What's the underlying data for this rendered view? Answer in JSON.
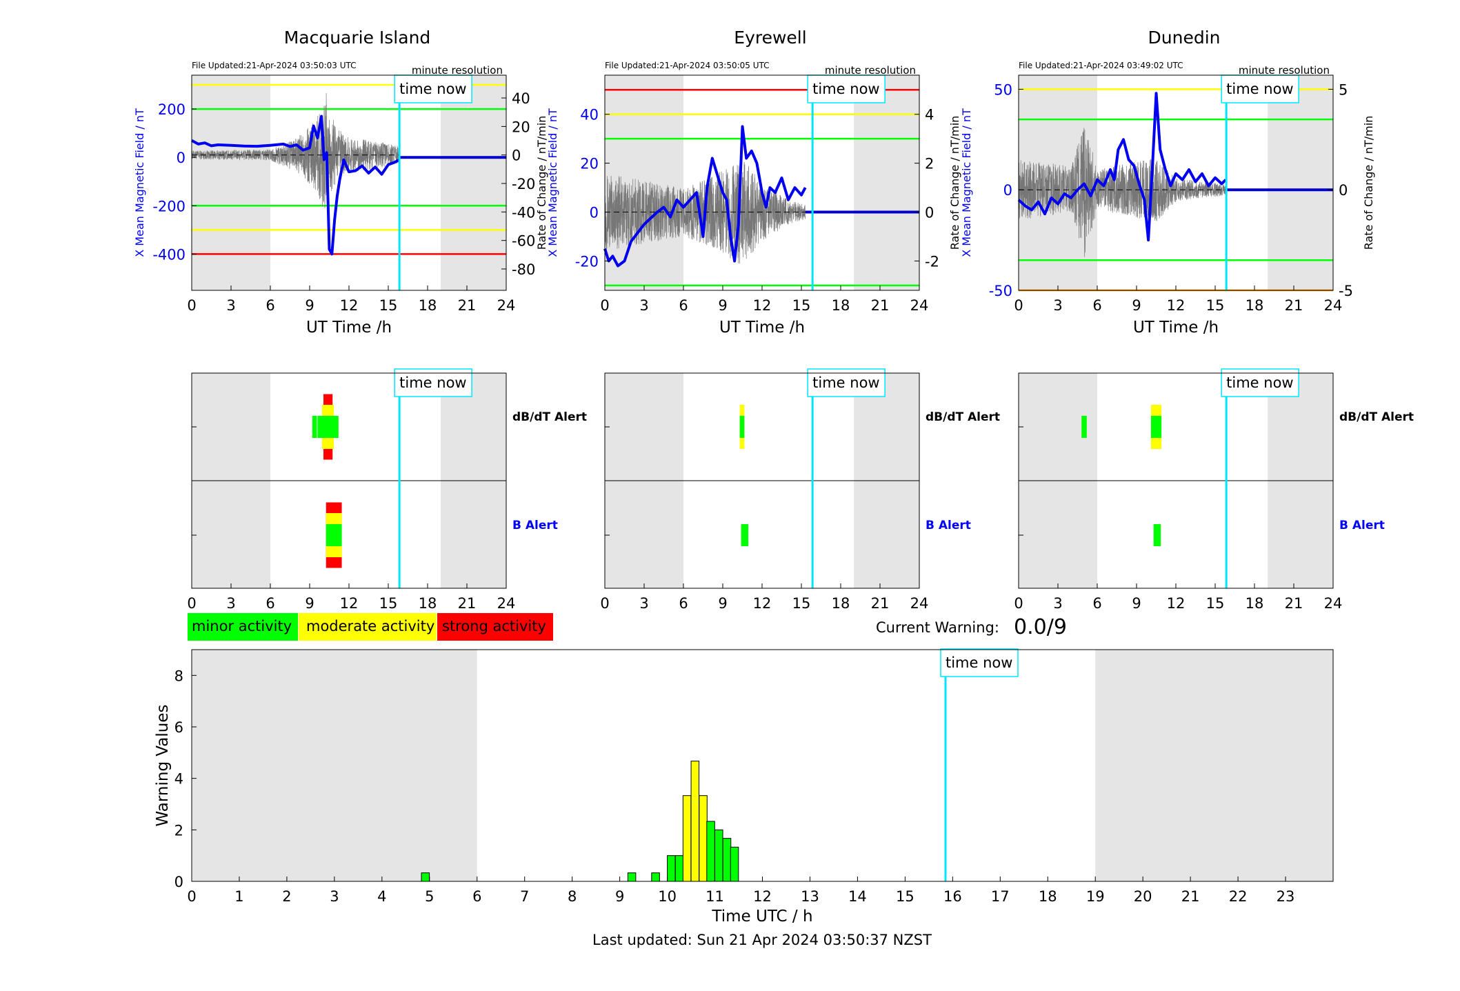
{
  "footer": {
    "last_updated": "Last updated: Sun 21 Apr 2024 03:50:37 NZST"
  },
  "common": {
    "xlabel": "UT Time /h",
    "y_left_label": "X Mean Magnetic Field / nT",
    "y_right_label": "Rate of Change / nT/min",
    "resolution": "minute resolution",
    "time_now_label": "time now",
    "time_now": 15.85,
    "daylight_shade": [
      [
        0,
        6
      ],
      [
        19,
        24
      ]
    ],
    "x_ticks": [
      0,
      3,
      6,
      9,
      12,
      15,
      18,
      21,
      24
    ],
    "dbdt_label": "dB/dT Alert",
    "b_label": "B Alert",
    "colors": {
      "minor": "#00ff00",
      "moderate": "#ffff00",
      "strong": "#ff0000",
      "field": "#0000ee",
      "now": "#00e5ff",
      "shade": "#e5e5e5"
    }
  },
  "legend": {
    "minor": "minor activity",
    "moderate": "moderate activity",
    "strong": "strong activity"
  },
  "current_warning": {
    "label": "Current Warning:",
    "value": "0.0/9"
  },
  "chart_data": [
    {
      "type": "line",
      "title": "Macquarie Island",
      "file_updated": "File Updated:21-Apr-2024 03:50:03 UTC",
      "xlim": [
        0,
        24
      ],
      "ylim_left": [
        -550,
        340
      ],
      "yticks_left": [
        -400,
        -200,
        0,
        200
      ],
      "ylim_right": [
        -95,
        56
      ],
      "yticks_right": [
        -80,
        -60,
        -40,
        -20,
        0,
        20,
        40
      ],
      "thresholds": [
        {
          "level": 300,
          "color": "#ffff00"
        },
        {
          "level": 200,
          "color": "#00ff00"
        },
        {
          "level": -200,
          "color": "#00ff00"
        },
        {
          "level": -300,
          "color": "#ffff00"
        },
        {
          "level": -400,
          "color": "#ff0000"
        }
      ],
      "field": {
        "x": [
          0,
          0.5,
          1,
          1.5,
          2,
          3,
          4,
          5,
          6,
          7,
          7.5,
          8,
          8.5,
          9,
          9.3,
          9.6,
          9.9,
          10.1,
          10.3,
          10.5,
          10.7,
          10.9,
          11.1,
          11.3,
          11.6,
          12,
          12.5,
          13,
          13.5,
          14,
          14.5,
          15,
          15.5,
          15.85
        ],
        "y": [
          70,
          55,
          60,
          48,
          52,
          50,
          47,
          46,
          50,
          55,
          45,
          52,
          30,
          40,
          130,
          80,
          170,
          -10,
          20,
          -380,
          -400,
          -260,
          -160,
          -90,
          -10,
          -60,
          -55,
          -35,
          -65,
          -40,
          -70,
          -30,
          -20,
          -10
        ]
      },
      "field_after_now": [
        [
          15.85,
          0
        ],
        [
          24,
          0
        ]
      ],
      "rate_amplitude": [
        [
          0,
          3
        ],
        [
          6,
          4
        ],
        [
          8,
          12
        ],
        [
          9.5,
          25
        ],
        [
          10.3,
          45
        ],
        [
          11,
          20
        ],
        [
          12,
          12
        ],
        [
          14,
          10
        ],
        [
          15.85,
          6
        ]
      ]
    },
    {
      "type": "line",
      "title": "Eyrewell",
      "file_updated": "File Updated:21-Apr-2024 03:50:05 UTC",
      "xlim": [
        0,
        24
      ],
      "ylim_left": [
        -32,
        56
      ],
      "yticks_left": [
        -20,
        0,
        20,
        40
      ],
      "ylim_right": [
        -3.2,
        5.6
      ],
      "yticks_right": [
        -2,
        0,
        2,
        4
      ],
      "thresholds": [
        {
          "level": 50,
          "color": "#ff0000"
        },
        {
          "level": 40,
          "color": "#ffff00"
        },
        {
          "level": 30,
          "color": "#00ff00"
        },
        {
          "level": -30,
          "color": "#00ff00"
        }
      ],
      "field": {
        "x": [
          0,
          0.3,
          0.6,
          1,
          1.5,
          2,
          3,
          4,
          4.5,
          5,
          5.5,
          6,
          6.5,
          7,
          7.5,
          7.8,
          8.2,
          8.6,
          9,
          9.3,
          9.6,
          9.9,
          10.2,
          10.5,
          10.8,
          11.2,
          11.6,
          12,
          12.3,
          12.6,
          13,
          13.5,
          14,
          14.5,
          15,
          15.3
        ],
        "y": [
          -15,
          -20,
          -18,
          -22,
          -20,
          -12,
          -5,
          0,
          2,
          -2,
          5,
          2,
          5,
          8,
          -10,
          10,
          22,
          15,
          8,
          5,
          -10,
          -20,
          -5,
          35,
          22,
          25,
          20,
          8,
          2,
          10,
          8,
          14,
          5,
          10,
          7,
          10
        ]
      },
      "field_after_now": [
        [
          15.3,
          0
        ],
        [
          24,
          0
        ]
      ],
      "rate_amplitude": [
        [
          0,
          1.6
        ],
        [
          4,
          1.2
        ],
        [
          6,
          1.0
        ],
        [
          8,
          1.4
        ],
        [
          10.5,
          2.2
        ],
        [
          12,
          1.2
        ],
        [
          14,
          0.5
        ],
        [
          15.3,
          0.3
        ]
      ]
    },
    {
      "type": "line",
      "title": "Dunedin",
      "file_updated": "File Updated:21-Apr-2024 03:49:02 UTC",
      "xlim": [
        0,
        24
      ],
      "ylim_left": [
        -50,
        57
      ],
      "yticks_left": [
        -50,
        0,
        50
      ],
      "ylim_right": [
        -5,
        5.7
      ],
      "yticks_right": [
        -5,
        0,
        5
      ],
      "thresholds": [
        {
          "level": 50,
          "color": "#ffff00"
        },
        {
          "level": 35,
          "color": "#00ff00"
        },
        {
          "level": -35,
          "color": "#00ff00"
        },
        {
          "level": -50,
          "color": "#ff9900"
        }
      ],
      "field": {
        "x": [
          0,
          0.5,
          1,
          1.5,
          2,
          2.5,
          3,
          3.5,
          4,
          4.5,
          5,
          5.5,
          6,
          6.5,
          7,
          7.3,
          7.6,
          8,
          8.4,
          8.8,
          9.2,
          9.6,
          9.9,
          10.2,
          10.5,
          10.8,
          11.2,
          11.6,
          12,
          12.5,
          13,
          13.5,
          14,
          14.5,
          15,
          15.5,
          15.8
        ],
        "y": [
          -5,
          -8,
          -10,
          -6,
          -12,
          -4,
          -7,
          -2,
          -4,
          0,
          3,
          -3,
          5,
          2,
          10,
          5,
          20,
          25,
          15,
          12,
          3,
          -5,
          -25,
          10,
          48,
          20,
          10,
          2,
          8,
          5,
          10,
          4,
          8,
          2,
          6,
          3,
          5
        ]
      },
      "field_after_now": [
        [
          15.8,
          0
        ],
        [
          24,
          0
        ]
      ],
      "rate_amplitude": [
        [
          0,
          1.5
        ],
        [
          4,
          1.2
        ],
        [
          5,
          3.5
        ],
        [
          6,
          1.0
        ],
        [
          8,
          1.3
        ],
        [
          10.5,
          1.6
        ],
        [
          12,
          0.6
        ],
        [
          14,
          0.4
        ],
        [
          15.8,
          0.3
        ]
      ]
    },
    {
      "type": "bar",
      "subtype": "alert_timeline",
      "station": "Macquarie Island",
      "xlim": [
        0,
        24
      ],
      "dbdt": [
        {
          "x0": 9.2,
          "x1": 9.55,
          "level": 1
        },
        {
          "x0": 9.6,
          "x1": 11.2,
          "level": 1
        },
        {
          "x0": 9.95,
          "x1": 10.85,
          "level": 2
        },
        {
          "x0": 10.05,
          "x1": 10.75,
          "level": 3
        }
      ],
      "b": [
        {
          "x0": 10.25,
          "x1": 11.45,
          "level": 3
        },
        {
          "x0": 10.25,
          "x1": 11.45,
          "level": 2
        },
        {
          "x0": 10.25,
          "x1": 11.45,
          "level": 1
        }
      ]
    },
    {
      "type": "bar",
      "subtype": "alert_timeline",
      "station": "Eyrewell",
      "xlim": [
        0,
        24
      ],
      "dbdt": [
        {
          "x0": 10.3,
          "x1": 10.65,
          "level": 2
        },
        {
          "x0": 10.3,
          "x1": 10.65,
          "level": 1
        }
      ],
      "b": [
        {
          "x0": 10.4,
          "x1": 10.95,
          "level": 1
        }
      ]
    },
    {
      "type": "bar",
      "subtype": "alert_timeline",
      "station": "Dunedin",
      "xlim": [
        0,
        24
      ],
      "dbdt": [
        {
          "x0": 4.8,
          "x1": 5.2,
          "level": 1
        },
        {
          "x0": 10.1,
          "x1": 10.9,
          "level": 2
        },
        {
          "x0": 10.1,
          "x1": 10.9,
          "level": 1
        }
      ],
      "b": [
        {
          "x0": 10.3,
          "x1": 10.85,
          "level": 1
        }
      ]
    },
    {
      "type": "bar",
      "subtype": "warning_values",
      "xlabel": "Time UTC / h",
      "ylabel": "Warning Values",
      "xlim": [
        0,
        24
      ],
      "ylim": [
        0,
        9
      ],
      "yticks": [
        0,
        2,
        4,
        6,
        8
      ],
      "x_ticks": [
        0,
        1,
        2,
        3,
        4,
        5,
        6,
        7,
        8,
        9,
        10,
        11,
        12,
        13,
        14,
        15,
        16,
        17,
        18,
        19,
        20,
        21,
        22,
        23
      ],
      "bar_width": 0.1667,
      "bars": [
        {
          "x": 4.83,
          "value": 0.33,
          "level": 1
        },
        {
          "x": 9.17,
          "value": 0.33,
          "level": 1
        },
        {
          "x": 9.67,
          "value": 0.33,
          "level": 1
        },
        {
          "x": 10.0,
          "value": 1.0,
          "level": 1
        },
        {
          "x": 10.17,
          "value": 1.0,
          "level": 1
        },
        {
          "x": 10.33,
          "value": 3.33,
          "level": 2
        },
        {
          "x": 10.5,
          "value": 4.67,
          "level": 2
        },
        {
          "x": 10.67,
          "value": 3.33,
          "level": 2
        },
        {
          "x": 10.83,
          "value": 2.33,
          "level": 1
        },
        {
          "x": 11.0,
          "value": 2.0,
          "level": 1
        },
        {
          "x": 11.17,
          "value": 1.67,
          "level": 1
        },
        {
          "x": 11.33,
          "value": 1.33,
          "level": 1
        }
      ]
    }
  ]
}
